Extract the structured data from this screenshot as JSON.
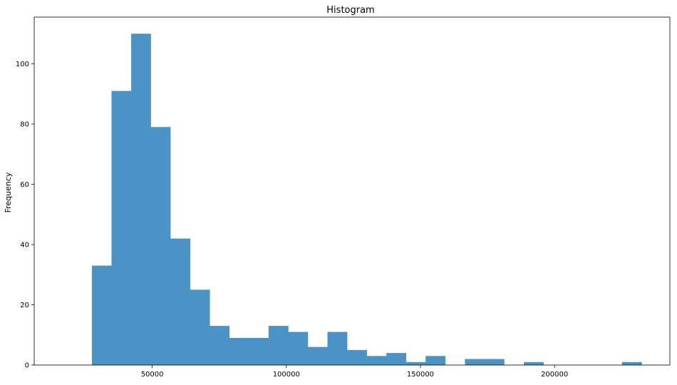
{
  "chart_data": {
    "type": "bar",
    "title": "Histogram",
    "xlabel": "",
    "ylabel": "Frequency",
    "bin_width": 7320,
    "bin_edges_start": 27500,
    "counts": [
      33,
      91,
      110,
      79,
      42,
      25,
      13,
      9,
      9,
      13,
      11,
      6,
      11,
      5,
      3,
      4,
      1,
      3,
      0,
      2,
      2,
      0,
      1,
      0,
      0,
      0,
      0,
      1
    ],
    "xlim": [
      6000,
      243000
    ],
    "ylim": [
      0,
      115.5
    ],
    "x_ticks": [
      50000,
      100000,
      150000,
      200000
    ],
    "y_ticks": [
      0,
      20,
      40,
      60,
      80,
      100
    ],
    "bar_color": "#4c93c5",
    "grid": false
  }
}
